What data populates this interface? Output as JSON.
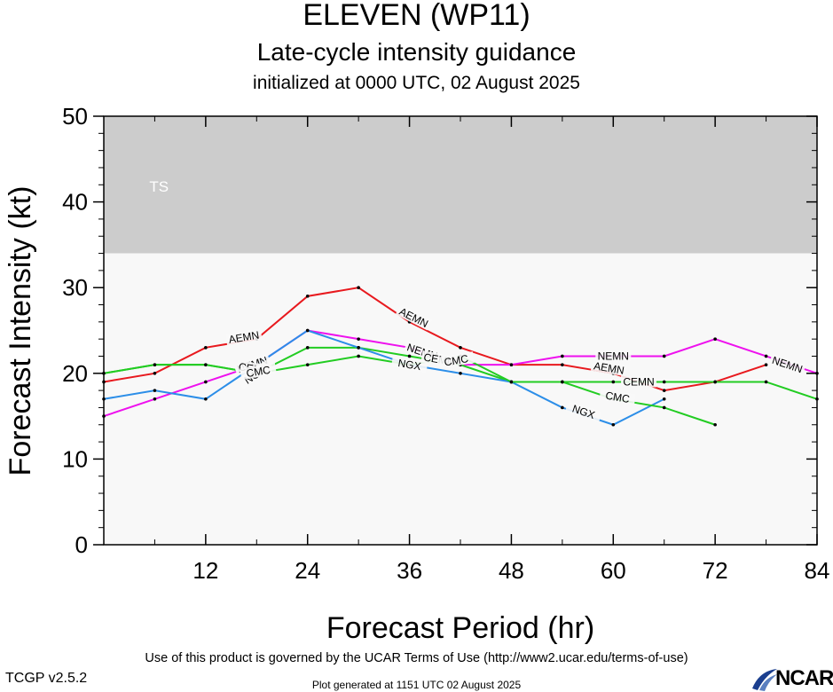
{
  "title": "ELEVEN (WP11)",
  "subtitle": "Late-cycle intensity guidance",
  "init_line": "initialized at 0000 UTC, 02 August 2025",
  "footer_terms": "Use of this product is governed by the UCAR Terms of Use (http://www2.ucar.edu/terms-of-use)",
  "footer_version": "TCGP v2.5.2",
  "footer_generated": "Plot generated at 1151 UTC   02 August 2025",
  "logo_text": "NCAR",
  "chart_data": {
    "type": "line",
    "xlabel": "Forecast Period (hr)",
    "ylabel": "Forecast Intensity (kt)",
    "xlim": [
      0,
      84
    ],
    "ylim": [
      0,
      50
    ],
    "xticks": [
      12,
      24,
      36,
      48,
      60,
      72,
      84
    ],
    "yticks": [
      0,
      10,
      20,
      30,
      40,
      50
    ],
    "grid": false,
    "legend": "none",
    "bands": [
      {
        "label": "TS",
        "from": 34,
        "to": 50,
        "color": "#cccccc"
      },
      {
        "label": "",
        "from": 0,
        "to": 34,
        "color": "#f8f8f8"
      }
    ],
    "series": [
      {
        "name": "AEMN",
        "color": "#e8191e",
        "x": [
          0,
          6,
          12,
          18,
          24,
          30,
          36,
          42,
          48,
          54,
          60,
          66,
          72,
          78
        ],
        "y": [
          19,
          20,
          23,
          24,
          29,
          30,
          26,
          23,
          21,
          21,
          20,
          18,
          19,
          21
        ],
        "labels": [
          [
            16.5,
            24.2
          ],
          [
            36.5,
            26.5
          ],
          [
            59.5,
            20.6
          ]
        ]
      },
      {
        "name": "NEMN",
        "color": "#ee11ee",
        "x": [
          0,
          6,
          12,
          18,
          24,
          30,
          36,
          42,
          48,
          54,
          60,
          66,
          72,
          78,
          84
        ],
        "y": [
          15,
          17,
          19,
          21,
          25,
          24,
          23,
          21,
          21,
          22,
          22,
          22,
          24,
          22,
          20
        ],
        "labels": [
          [
            17.5,
            21
          ],
          [
            37.5,
            22.5
          ],
          [
            60,
            22
          ],
          [
            80.5,
            21
          ]
        ]
      },
      {
        "name": "CEMN",
        "color": "#22cc22",
        "x": [
          0,
          6,
          12,
          18,
          24,
          30,
          36,
          42,
          48,
          54,
          60,
          66,
          72,
          78,
          84
        ],
        "y": [
          20,
          21,
          21,
          20,
          23,
          23,
          22,
          21,
          19,
          19,
          19,
          19,
          19,
          19,
          17
        ],
        "labels": [
          [
            17.7,
            20.5
          ],
          [
            39.5,
            21.6
          ],
          [
            63,
            19
          ]
        ]
      },
      {
        "name": "NGX",
        "color": "#2c8ee8",
        "x": [
          0,
          6,
          12,
          18,
          24,
          30,
          36,
          42,
          48,
          54,
          60,
          66
        ],
        "y": [
          17,
          18,
          17,
          21,
          25,
          23,
          21,
          20,
          19,
          16,
          14,
          17
        ],
        "labels": [
          [
            17.8,
            19.8
          ],
          [
            36,
            21
          ],
          [
            56.5,
            15.5
          ]
        ]
      },
      {
        "name": "CMC",
        "color": "#22cc22",
        "x": [
          0,
          6,
          12,
          18,
          24,
          30,
          36,
          42,
          48,
          54,
          60,
          66,
          72
        ],
        "y": [
          20,
          21,
          21,
          20,
          21,
          22,
          21,
          22,
          19,
          19,
          17,
          16,
          14
        ],
        "labels": [
          [
            18.2,
            20.2
          ],
          [
            41.5,
            21.5
          ],
          [
            60.5,
            17.2
          ]
        ]
      }
    ]
  }
}
